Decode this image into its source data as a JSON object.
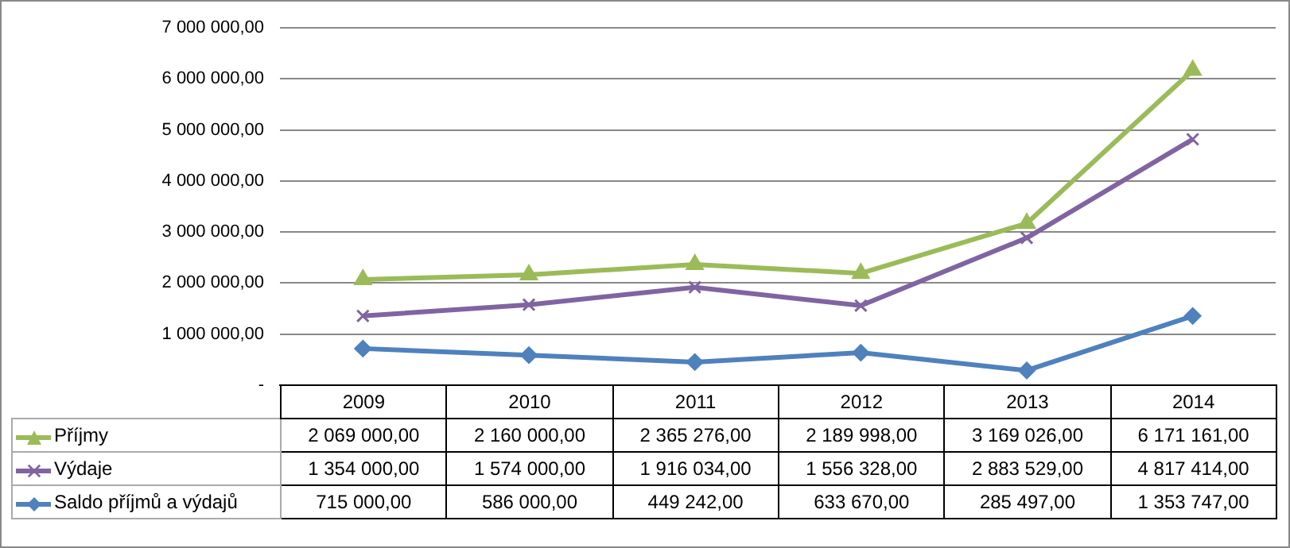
{
  "chart_data": {
    "type": "line",
    "categories": [
      "2009",
      "2010",
      "2011",
      "2012",
      "2013",
      "2014"
    ],
    "series": [
      {
        "name": "Příjmy",
        "color": "#9bbb59",
        "marker": "triangle",
        "values": [
          2069000,
          2160000,
          2365276,
          2189998,
          3169026,
          6171161
        ],
        "value_labels": [
          "2 069 000,00",
          "2 160 000,00",
          "2 365 276,00",
          "2 189 998,00",
          "3 169 026,00",
          "6 171 161,00"
        ]
      },
      {
        "name": "Výdaje",
        "color": "#8064a2",
        "marker": "cross",
        "values": [
          1354000,
          1574000,
          1916034,
          1556328,
          2883529,
          4817414
        ],
        "value_labels": [
          "1 354 000,00",
          "1 574 000,00",
          "1 916 034,00",
          "1 556 328,00",
          "2 883 529,00",
          "4 817 414,00"
        ]
      },
      {
        "name": "Saldo příjmů a výdajů",
        "color": "#4f81bd",
        "marker": "diamond",
        "values": [
          715000,
          586000,
          449242,
          633670,
          285497,
          1353747
        ],
        "value_labels": [
          "715 000,00",
          "586 000,00",
          "449 242,00",
          "633 670,00",
          "285 497,00",
          "1 353 747,00"
        ]
      }
    ],
    "ylim": [
      0,
      7000000
    ],
    "yticks": [
      {
        "value": 0,
        "label": "-"
      },
      {
        "value": 1000000,
        "label": "1 000 000,00"
      },
      {
        "value": 2000000,
        "label": "2 000 000,00"
      },
      {
        "value": 3000000,
        "label": "3 000 000,00"
      },
      {
        "value": 4000000,
        "label": "4 000 000,00"
      },
      {
        "value": 5000000,
        "label": "5 000 000,00"
      },
      {
        "value": 6000000,
        "label": "6 000 000,00"
      },
      {
        "value": 7000000,
        "label": "7 000 000,00"
      }
    ],
    "grid": "y",
    "legend": "bottom left",
    "data_labels": true
  }
}
